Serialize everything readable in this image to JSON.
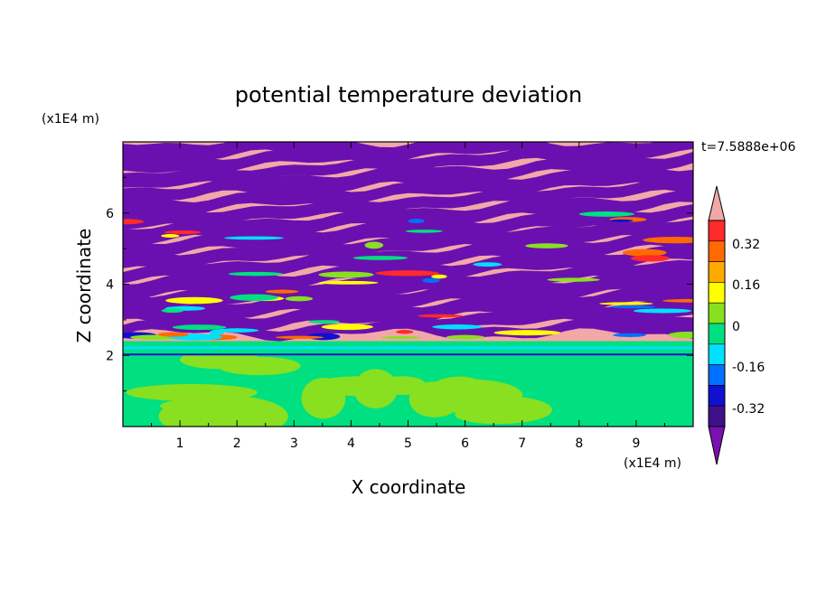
{
  "chart_data": {
    "type": "heatmap",
    "title": "potential temperature deviation",
    "time_label": "t=7.5888e+06",
    "xlabel": "X coordinate",
    "ylabel": "Z coordinate",
    "x_unit": "(x1E4 m)",
    "y_unit": "(x1E4 m)",
    "xlim": [
      0,
      10
    ],
    "ylim": [
      0,
      8
    ],
    "x_ticks": [
      "1",
      "2",
      "3",
      "4",
      "5",
      "6",
      "7",
      "8",
      "9"
    ],
    "y_ticks": [
      "2",
      "4",
      "6"
    ],
    "colorbar": {
      "tick_labels": [
        "0.32",
        "0.16",
        "0",
        "-0.16",
        "-0.32"
      ],
      "levels": [
        -0.48,
        -0.4,
        -0.32,
        -0.24,
        -0.16,
        -0.08,
        0,
        0.08,
        0.16,
        0.24,
        0.32,
        0.4,
        0.48
      ],
      "colors": [
        "#6a0dad",
        "#2b00c8",
        "#0018ff",
        "#00b0ff",
        "#00ffff",
        "#00e17a",
        "#7be32d",
        "#e6ff00",
        "#ffb800",
        "#ff6f00",
        "#ff1f1f",
        "#f2a8a8"
      ],
      "colors_top_to_bottom": [
        "#f2a8a8",
        "#ff2a2a",
        "#ff6a00",
        "#ffaa00",
        "#ffff00",
        "#88e020",
        "#00e080",
        "#00e0ff",
        "#0070ff",
        "#1010d0",
        "#40108a",
        "#7a10b0"
      ]
    },
    "bands": [
      {
        "z_from": 0,
        "z_to": 2.0,
        "fill": "#00e080",
        "secondary": "#88e020"
      },
      {
        "z_from": 2.0,
        "z_to": 2.4,
        "fill": "#00e080",
        "secondary": "#00e0ff"
      },
      {
        "z_from": 2.4,
        "z_to": 8.0,
        "fill": "#f2a8a8",
        "secondary": "#6a10b0"
      }
    ]
  }
}
